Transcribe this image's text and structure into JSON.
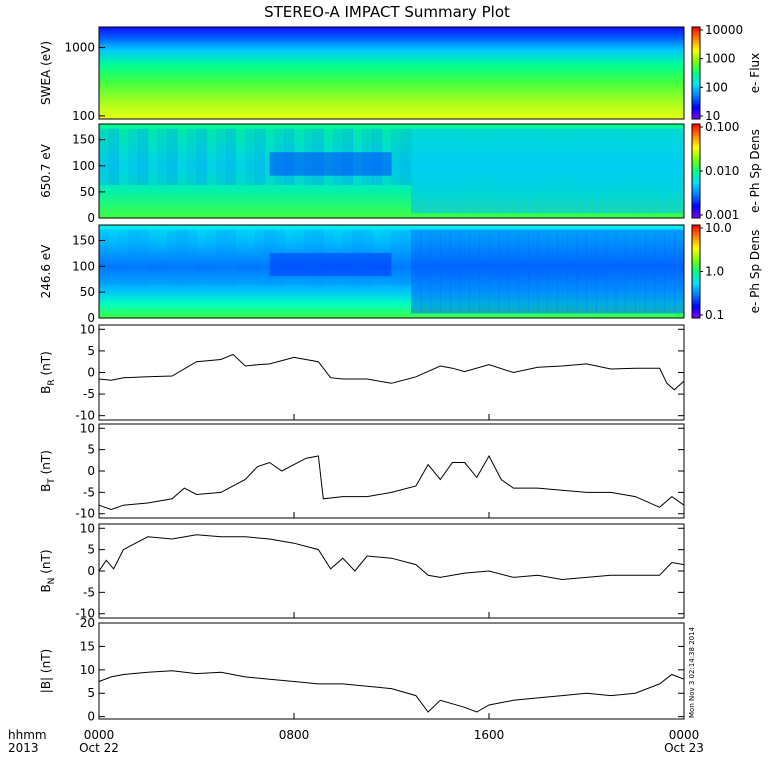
{
  "title": "STEREO-A IMPACT Summary Plot",
  "stamp": "Mon Nov 3 02:14:38 2014",
  "time_axis": {
    "row1_labels": [
      "hhmm",
      "0000",
      "0800",
      "1600",
      "0000"
    ],
    "row2_labels": [
      "2013",
      "Oct 22",
      "",
      "",
      "Oct 23"
    ]
  },
  "colors": {
    "spectrogram_palette": [
      "#7f00ff",
      "#0000ff",
      "#0080ff",
      "#00e0ff",
      "#00ff80",
      "#80ff00",
      "#ffff00",
      "#ff8000",
      "#ff0000"
    ]
  },
  "chart_data": [
    {
      "type": "heatmap",
      "id": "swea",
      "ylabel": "SWEA (eV)",
      "yscale": "log",
      "ylim": [
        90,
        2000
      ],
      "yticks": [
        "100",
        "1000"
      ],
      "colorbar_label": "e- Flux",
      "colorbar_ticks": [
        "10",
        "100",
        "1000",
        "10000"
      ]
    },
    {
      "type": "heatmap",
      "id": "pad650",
      "ylabel": "650.7 eV",
      "ylim": [
        0,
        180
      ],
      "yticks": [
        "0",
        "50",
        "100",
        "150"
      ],
      "colorbar_label": "e- Ph Sp Dens",
      "colorbar_ticks": [
        "0.001",
        "0.010",
        "0.100"
      ]
    },
    {
      "type": "heatmap",
      "id": "pad246",
      "ylabel": "246.6 eV",
      "ylim": [
        0,
        180
      ],
      "yticks": [
        "0",
        "50",
        "100",
        "150"
      ],
      "colorbar_label": "e- Ph Sp Dens",
      "colorbar_ticks": [
        "0.1",
        "1.0",
        "10.0"
      ]
    },
    {
      "type": "line",
      "id": "br",
      "ylabel_main": "B",
      "ylabel_sub": "R",
      "ylabel_unit": " (nT)",
      "ylim": [
        -11,
        11
      ],
      "yticks": [
        "-10",
        "-5",
        "0",
        "5",
        "10"
      ],
      "x_hours": [
        0,
        0.5,
        1,
        2,
        3,
        4,
        5,
        5.5,
        6,
        6.5,
        7,
        8,
        9,
        9.5,
        10,
        11,
        12,
        13,
        14,
        14.5,
        15,
        16,
        17,
        18,
        19,
        20,
        21,
        22,
        23,
        23.3,
        23.6,
        24
      ],
      "values": [
        -1.5,
        -1.8,
        -1.2,
        -1.0,
        -0.8,
        2.5,
        3.0,
        4.2,
        1.5,
        1.8,
        2.0,
        3.5,
        2.5,
        -1.2,
        -1.5,
        -1.5,
        -2.5,
        -1.0,
        1.5,
        1.0,
        0.2,
        1.8,
        0.0,
        1.2,
        1.5,
        2.0,
        0.8,
        1.0,
        1.0,
        -2.5,
        -4.0,
        -2.0
      ]
    },
    {
      "type": "line",
      "id": "bt",
      "ylabel_main": "B",
      "ylabel_sub": "T",
      "ylabel_unit": " (nT)",
      "ylim": [
        -11,
        11
      ],
      "yticks": [
        "-10",
        "-5",
        "0",
        "5",
        "10"
      ],
      "x_hours": [
        0,
        0.5,
        1,
        2,
        3,
        3.5,
        4,
        5,
        6,
        6.5,
        7,
        7.5,
        8,
        8.5,
        9,
        9.2,
        10,
        11,
        12,
        13,
        13.5,
        14,
        14.5,
        15,
        15.5,
        16,
        16.5,
        17,
        18,
        19,
        20,
        21,
        22,
        23,
        23.5,
        24
      ],
      "values": [
        -8.0,
        -9.0,
        -8.0,
        -7.5,
        -6.5,
        -4.0,
        -5.5,
        -5.0,
        -2.0,
        1.0,
        2.0,
        0.0,
        1.5,
        3.0,
        3.5,
        -6.5,
        -6.0,
        -6.0,
        -5.0,
        -3.5,
        1.5,
        -2.0,
        2.0,
        2.0,
        -1.5,
        3.5,
        -2.0,
        -4.0,
        -4.0,
        -4.5,
        -5.0,
        -5.0,
        -6.0,
        -8.5,
        -6.0,
        -8.0
      ]
    },
    {
      "type": "line",
      "id": "bn",
      "ylabel_main": "B",
      "ylabel_sub": "N",
      "ylabel_unit": " (nT)",
      "ylim": [
        -11,
        11
      ],
      "yticks": [
        "-10",
        "-5",
        "0",
        "5",
        "10"
      ],
      "x_hours": [
        0,
        0.3,
        0.6,
        1,
        2,
        3,
        4,
        5,
        6,
        7,
        8,
        9,
        9.5,
        10,
        10.5,
        11,
        12,
        13,
        13.5,
        14,
        15,
        16,
        17,
        18,
        19,
        20,
        21,
        22,
        23,
        23.5,
        24
      ],
      "values": [
        0.0,
        2.5,
        0.5,
        5.0,
        8.0,
        7.5,
        8.5,
        8.0,
        8.0,
        7.5,
        6.5,
        5.0,
        0.5,
        3.0,
        0.0,
        3.5,
        3.0,
        1.5,
        -1.0,
        -1.5,
        -0.5,
        0.0,
        -1.5,
        -1.0,
        -2.0,
        -1.5,
        -1.0,
        -1.0,
        -1.0,
        2.0,
        1.5
      ]
    },
    {
      "type": "line",
      "id": "bmag",
      "ylabel_main": "|B|",
      "ylabel_sub": "",
      "ylabel_unit": " (nT)",
      "ylim": [
        -0.5,
        20
      ],
      "yticks": [
        "0",
        "5",
        "10",
        "15",
        "20"
      ],
      "x_hours": [
        0,
        0.5,
        1,
        2,
        3,
        4,
        5,
        6,
        7,
        8,
        9,
        10,
        11,
        12,
        13,
        13.5,
        14,
        15,
        15.5,
        16,
        17,
        18,
        19,
        20,
        21,
        22,
        23,
        23.5,
        24
      ],
      "values": [
        7.5,
        8.5,
        9.0,
        9.5,
        9.8,
        9.2,
        9.5,
        8.5,
        8.0,
        7.5,
        7.0,
        7.0,
        6.5,
        6.0,
        4.5,
        1.0,
        3.5,
        2.0,
        1.0,
        2.5,
        3.5,
        4.0,
        4.5,
        5.0,
        4.5,
        5.0,
        7.0,
        9.0,
        8.0
      ]
    }
  ]
}
